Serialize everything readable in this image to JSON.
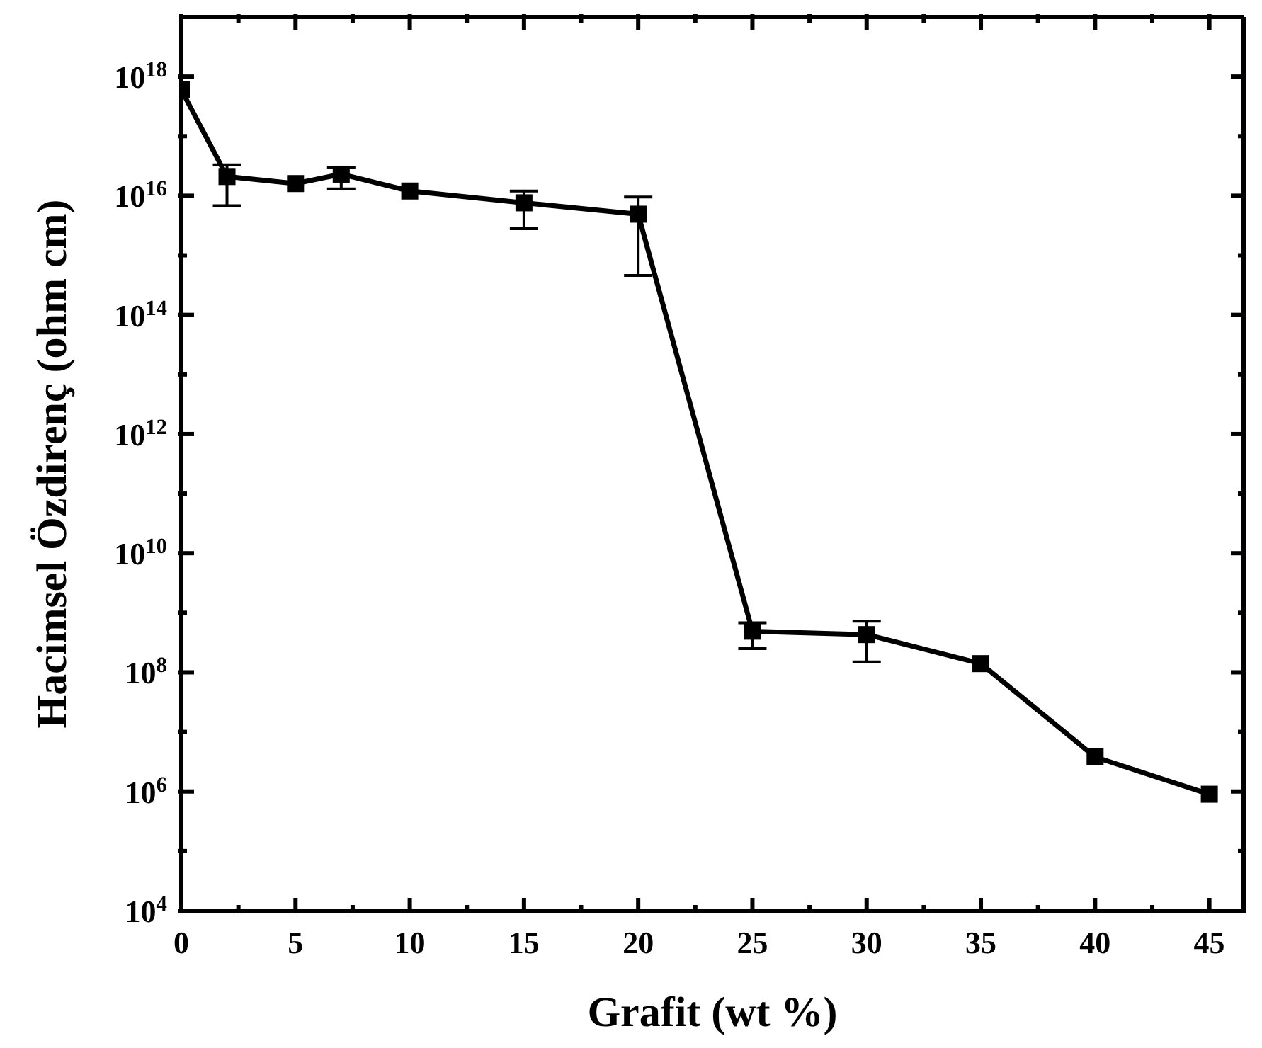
{
  "chart_data": {
    "type": "line",
    "xlabel": "Grafit (wt %)",
    "ylabel": "Hacimsel Özdirenç (ohm cm)",
    "log": "y",
    "marker": "square",
    "line_style": "solid",
    "x": [
      0,
      2,
      5,
      7,
      10,
      15,
      20,
      25,
      30,
      35,
      40,
      45
    ],
    "xlim": [
      0,
      46.5
    ],
    "xticks": [
      0,
      {
        "value": 2.5,
        "label": null
      },
      5,
      {
        "value": 7.5,
        "label": null
      },
      10,
      {
        "value": 12.5,
        "label": null
      },
      15,
      {
        "value": 17.5,
        "label": null
      },
      20,
      {
        "value": 22.5,
        "label": null
      },
      25,
      {
        "value": 27.5,
        "label": null
      },
      30,
      {
        "value": 32.5,
        "label": null
      },
      35,
      {
        "value": 37.5,
        "label": null
      },
      40,
      {
        "value": 42.5,
        "label": null
      },
      45
    ],
    "ylim": [
      10000.0,
      1e+19
    ],
    "yticks": [
      {
        "value": 10000.0,
        "label": "10$^{4}$"
      },
      {
        "value": 100000.0,
        "label": null
      },
      {
        "value": 1000000.0,
        "label": "10$^{6}$"
      },
      {
        "value": 10000000.0,
        "label": null
      },
      {
        "value": 100000000.0,
        "label": "10$^{8}$"
      },
      {
        "value": 1000000000.0,
        "label": null
      },
      {
        "value": 10000000000.0,
        "label": "10$^{10}$"
      },
      {
        "value": 100000000000.0,
        "label": null
      },
      {
        "value": 1000000000000.0,
        "label": "10$^{12}$"
      },
      {
        "value": 10000000000000.0,
        "label": null
      },
      {
        "value": 100000000000000.0,
        "label": "10$^{14}$"
      },
      {
        "value": 1000000000000000.0,
        "label": null
      },
      {
        "value": 1e+16,
        "label": "10$^{16}$"
      },
      {
        "value": 1e+17,
        "label": null
      },
      {
        "value": 1e+18,
        "label": "10$^{18}$"
      }
    ],
    "series": [
      {
        "color": "#000000",
        "values": [
          6e+17,
          2.1e+16,
          1.6e+16,
          2.3e+16,
          1.2e+16,
          7600000000000000.0,
          4900000000000000.0,
          490000000.0,
          430000000.0,
          140000000.0,
          3800000.0,
          900000.0
        ],
        "errors": [
          null,
          [
            6800000000000000.0,
            3.3e+16
          ],
          null,
          [
            1.3e+16,
            3e+16
          ],
          null,
          [
            2800000000000000.0,
            1.2e+16
          ],
          [
            460000000000000.0,
            9500000000000000.0
          ],
          [
            250000000.0,
            680000000.0
          ],
          [
            150000000.0,
            720000000.0
          ],
          null,
          null,
          null
        ]
      }
    ]
  }
}
